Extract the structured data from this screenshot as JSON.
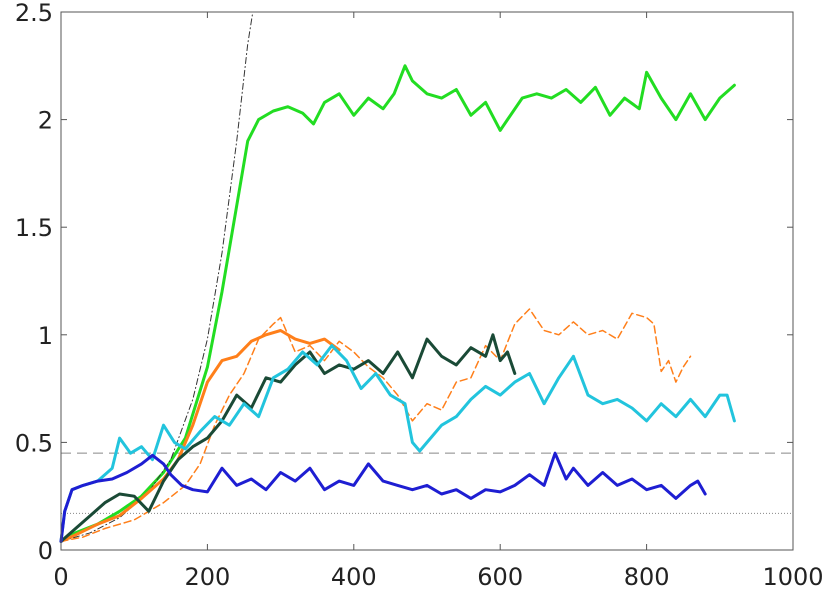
{
  "chart_data": {
    "type": "line",
    "title": "",
    "xlabel": "",
    "ylabel": "",
    "xlim": [
      0,
      1000
    ],
    "ylim": [
      0,
      2.5
    ],
    "xticks": [
      0,
      200,
      400,
      600,
      800,
      1000
    ],
    "yticks": [
      0,
      0.5,
      1,
      1.5,
      2,
      2.5
    ],
    "xtick_labels": [
      "0",
      "200",
      "400",
      "600",
      "800",
      "1000"
    ],
    "ytick_labels": [
      "0",
      "0.5",
      "1",
      "1.5",
      "2",
      "2.5"
    ],
    "grid": false,
    "legend": "none",
    "reference_lines": [
      {
        "y": 0.45,
        "style": "dashed",
        "color": "#888888"
      },
      {
        "y": 0.17,
        "style": "dotted",
        "color": "#888888"
      }
    ],
    "series": [
      {
        "color": "#22dd22",
        "style": "solid",
        "width": 3,
        "x": [
          0,
          20,
          50,
          80,
          110,
          140,
          170,
          200,
          220,
          240,
          255,
          270,
          290,
          310,
          330,
          345,
          360,
          380,
          400,
          420,
          440,
          455,
          470,
          480,
          500,
          520,
          540,
          560,
          580,
          600,
          610,
          630,
          650,
          670,
          690,
          710,
          730,
          750,
          770,
          790,
          800,
          820,
          840,
          860,
          880,
          900,
          920
        ],
        "y": [
          0.04,
          0.08,
          0.12,
          0.18,
          0.25,
          0.36,
          0.52,
          0.85,
          1.2,
          1.6,
          1.9,
          2.0,
          2.04,
          2.06,
          2.03,
          1.98,
          2.08,
          2.12,
          2.02,
          2.1,
          2.05,
          2.12,
          2.25,
          2.18,
          2.12,
          2.1,
          2.14,
          2.02,
          2.08,
          1.95,
          2.0,
          2.1,
          2.12,
          2.1,
          2.14,
          2.08,
          2.15,
          2.02,
          2.1,
          2.05,
          2.22,
          2.1,
          2.0,
          2.12,
          2.0,
          2.1,
          2.16
        ]
      },
      {
        "color": "#333333",
        "style": "dashdot",
        "width": 1,
        "x": [
          0,
          40,
          80,
          120,
          150,
          180,
          200,
          220,
          240,
          255,
          262
        ],
        "y": [
          0.04,
          0.08,
          0.15,
          0.27,
          0.42,
          0.7,
          0.98,
          1.38,
          1.9,
          2.35,
          2.5
        ]
      },
      {
        "color": "#ff7f1a",
        "style": "solid",
        "width": 3,
        "x": [
          0,
          20,
          50,
          80,
          110,
          140,
          160,
          180,
          200,
          220,
          240,
          260,
          280,
          300,
          320,
          340,
          360,
          380
        ],
        "y": [
          0.04,
          0.07,
          0.12,
          0.16,
          0.24,
          0.33,
          0.42,
          0.58,
          0.78,
          0.88,
          0.9,
          0.97,
          1.0,
          1.02,
          0.98,
          0.96,
          0.98,
          0.93
        ]
      },
      {
        "color": "#ff7f1a",
        "style": "dashed",
        "width": 1.5,
        "x": [
          0,
          30,
          60,
          100,
          140,
          170,
          190,
          210,
          230,
          250,
          270,
          290,
          300,
          320,
          340,
          360,
          380,
          400,
          420,
          440,
          460,
          480,
          500,
          520,
          540,
          560,
          580,
          600,
          620,
          640,
          660,
          680,
          700,
          720,
          740,
          760,
          780,
          800,
          810,
          820,
          830,
          840,
          850,
          860
        ],
        "y": [
          0.04,
          0.06,
          0.1,
          0.14,
          0.22,
          0.3,
          0.4,
          0.58,
          0.72,
          0.82,
          0.98,
          1.05,
          1.08,
          0.92,
          0.95,
          0.88,
          0.97,
          0.92,
          0.85,
          0.8,
          0.72,
          0.6,
          0.68,
          0.65,
          0.78,
          0.8,
          0.95,
          0.88,
          1.05,
          1.12,
          1.02,
          1.0,
          1.06,
          1.0,
          1.02,
          0.98,
          1.1,
          1.08,
          1.05,
          0.83,
          0.88,
          0.78,
          0.85,
          0.9
        ]
      },
      {
        "color": "#1a4a36",
        "style": "solid",
        "width": 3,
        "x": [
          0,
          20,
          40,
          60,
          80,
          100,
          120,
          140,
          160,
          180,
          200,
          220,
          240,
          260,
          280,
          300,
          320,
          340,
          360,
          380,
          400,
          420,
          440,
          460,
          480,
          500,
          520,
          540,
          560,
          580,
          590,
          600,
          610,
          620
        ],
        "y": [
          0.04,
          0.1,
          0.16,
          0.22,
          0.26,
          0.25,
          0.18,
          0.32,
          0.42,
          0.48,
          0.52,
          0.6,
          0.72,
          0.66,
          0.8,
          0.78,
          0.86,
          0.92,
          0.82,
          0.86,
          0.84,
          0.88,
          0.82,
          0.92,
          0.8,
          0.98,
          0.9,
          0.86,
          0.94,
          0.9,
          1.0,
          0.88,
          0.92,
          0.82
        ]
      },
      {
        "color": "#22c4dd",
        "style": "solid",
        "width": 3,
        "x": [
          0,
          5,
          15,
          30,
          50,
          70,
          80,
          95,
          110,
          125,
          140,
          155,
          170,
          190,
          210,
          230,
          250,
          270,
          290,
          310,
          330,
          350,
          370,
          390,
          410,
          430,
          450,
          470,
          480,
          490,
          500,
          520,
          540,
          560,
          580,
          600,
          620,
          640,
          660,
          680,
          700,
          720,
          740,
          760,
          780,
          800,
          820,
          840,
          860,
          880,
          900,
          910,
          920
        ],
        "y": [
          0.04,
          0.18,
          0.28,
          0.3,
          0.32,
          0.38,
          0.52,
          0.45,
          0.48,
          0.42,
          0.58,
          0.5,
          0.47,
          0.55,
          0.62,
          0.58,
          0.68,
          0.62,
          0.8,
          0.84,
          0.92,
          0.86,
          0.95,
          0.88,
          0.75,
          0.82,
          0.72,
          0.68,
          0.5,
          0.46,
          0.5,
          0.58,
          0.62,
          0.7,
          0.76,
          0.72,
          0.78,
          0.82,
          0.68,
          0.8,
          0.9,
          0.72,
          0.68,
          0.7,
          0.66,
          0.6,
          0.68,
          0.62,
          0.7,
          0.62,
          0.72,
          0.72,
          0.6
        ]
      },
      {
        "color": "#1e1ed2",
        "style": "solid",
        "width": 3,
        "x": [
          0,
          5,
          15,
          30,
          50,
          70,
          90,
          110,
          125,
          140,
          150,
          165,
          180,
          200,
          220,
          240,
          260,
          280,
          300,
          320,
          340,
          360,
          380,
          400,
          420,
          440,
          460,
          480,
          500,
          520,
          540,
          560,
          580,
          600,
          620,
          640,
          660,
          675,
          690,
          700,
          720,
          740,
          760,
          780,
          800,
          820,
          840,
          860,
          870,
          880
        ],
        "y": [
          0.04,
          0.18,
          0.28,
          0.3,
          0.32,
          0.33,
          0.36,
          0.4,
          0.44,
          0.4,
          0.35,
          0.3,
          0.28,
          0.27,
          0.38,
          0.3,
          0.33,
          0.28,
          0.36,
          0.32,
          0.38,
          0.28,
          0.32,
          0.3,
          0.4,
          0.32,
          0.3,
          0.28,
          0.3,
          0.26,
          0.28,
          0.24,
          0.28,
          0.27,
          0.3,
          0.35,
          0.3,
          0.45,
          0.33,
          0.38,
          0.3,
          0.36,
          0.3,
          0.33,
          0.28,
          0.3,
          0.24,
          0.3,
          0.32,
          0.26
        ]
      }
    ]
  }
}
